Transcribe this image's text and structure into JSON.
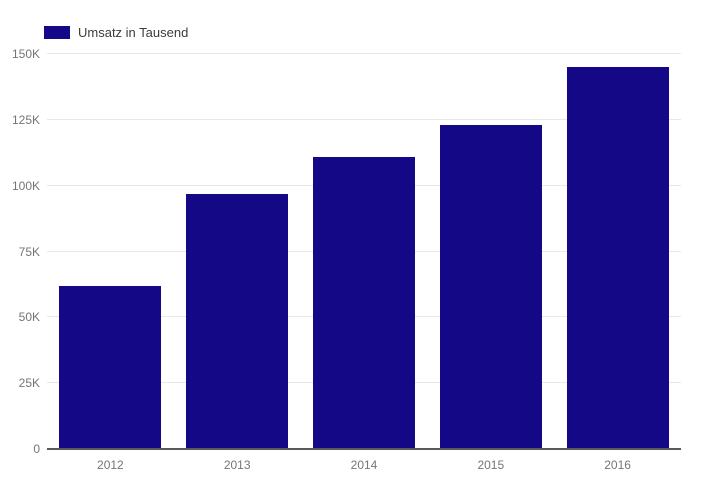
{
  "chart_data": {
    "type": "bar",
    "title": "",
    "categories": [
      "2012",
      "2013",
      "2014",
      "2015",
      "2016"
    ],
    "values": [
      62,
      97,
      111,
      123,
      145
    ],
    "unit": "K",
    "series_name": "Umsatz in Tausend",
    "xlabel": "",
    "ylabel": "",
    "ylim": [
      0,
      150
    ],
    "y_tick_values": [
      0,
      25,
      50,
      75,
      100,
      125,
      150
    ],
    "y_tick_labels": [
      "0",
      "25K",
      "50K",
      "75K",
      "100K",
      "125K",
      "150K"
    ],
    "grid": "horizontal",
    "legend_position": "top-left",
    "bar_color": "#150887"
  },
  "legend": {
    "label": "Umsatz in Tausend",
    "swatch_color": "#150887"
  },
  "colors": {
    "background": "#ffffff",
    "bar": "#150887",
    "gridline": "#e8e8e8",
    "axis_line": "#595959",
    "tick_text": "#757575",
    "legend_text": "#3c3c3c"
  }
}
